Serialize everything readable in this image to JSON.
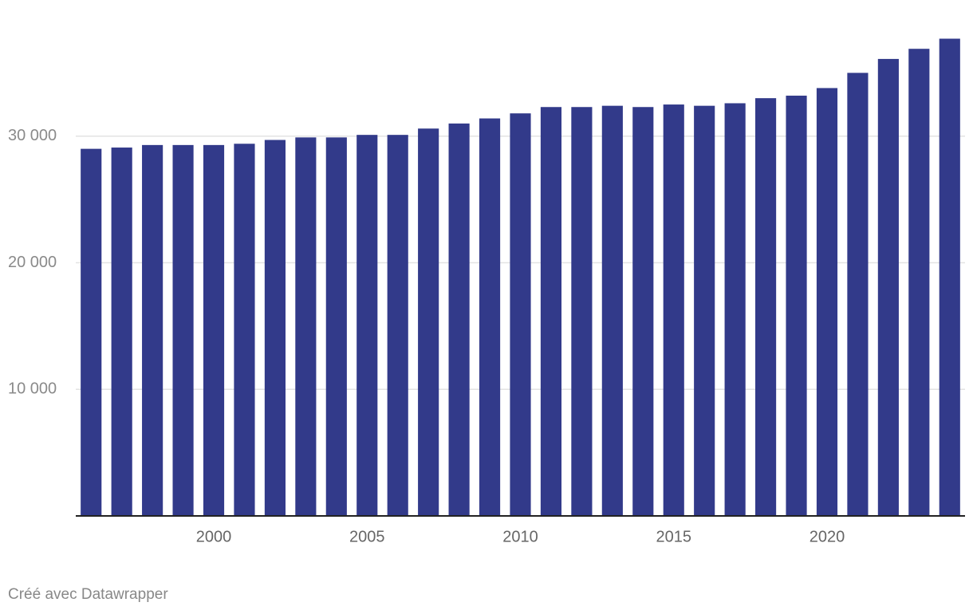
{
  "chart_data": {
    "type": "bar",
    "categories": [
      null,
      null,
      null,
      null,
      "2000",
      null,
      null,
      null,
      null,
      "2005",
      null,
      null,
      null,
      null,
      "2010",
      null,
      null,
      null,
      null,
      "2015",
      null,
      null,
      null,
      null,
      "2020",
      null,
      null,
      null,
      null
    ],
    "values": [
      29000,
      29100,
      29300,
      29300,
      29300,
      29400,
      29700,
      29900,
      29900,
      30100,
      30100,
      30600,
      31000,
      31400,
      31800,
      32300,
      32300,
      32400,
      32300,
      32500,
      32400,
      32600,
      33000,
      33200,
      33800,
      35000,
      36100,
      36900,
      37700
    ],
    "color": "#323a8a",
    "ylim": [
      0,
      40000
    ],
    "yticks": [
      {
        "value": 10000,
        "label": "10 000"
      },
      {
        "value": 20000,
        "label": "20 000"
      },
      {
        "value": 30000,
        "label": "30 000"
      }
    ],
    "grid": true,
    "footer": "Créé avec Datawrapper"
  }
}
